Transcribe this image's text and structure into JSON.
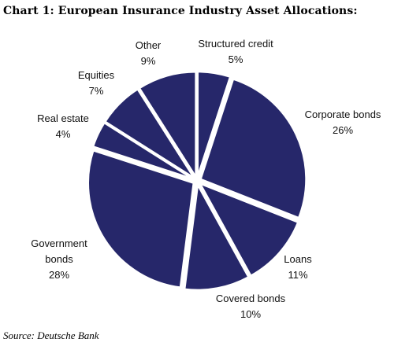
{
  "chart_data": {
    "type": "pie",
    "title": "Chart 1:  European Insurance Industry Asset Allocations:",
    "source": "Source: Deutsche Bank",
    "slices": [
      {
        "label_lines": [
          "Structured credit"
        ],
        "value_label": "5%",
        "value": 5
      },
      {
        "label_lines": [
          "Corporate bonds"
        ],
        "value_label": "26%",
        "value": 26
      },
      {
        "label_lines": [
          "Loans"
        ],
        "value_label": "11%",
        "value": 11
      },
      {
        "label_lines": [
          "Covered bonds"
        ],
        "value_label": "10%",
        "value": 10
      },
      {
        "label_lines": [
          "Government",
          "bonds"
        ],
        "value_label": "28%",
        "value": 28
      },
      {
        "label_lines": [
          "Real estate"
        ],
        "value_label": "4%",
        "value": 4
      },
      {
        "label_lines": [
          "Equities"
        ],
        "value_label": "7%",
        "value": 7
      },
      {
        "label_lines": [
          "Other"
        ],
        "value_label": "9%",
        "value": 9
      }
    ],
    "slice_color": "#26276a",
    "separator_color": "#ffffff",
    "exploded": true
  }
}
